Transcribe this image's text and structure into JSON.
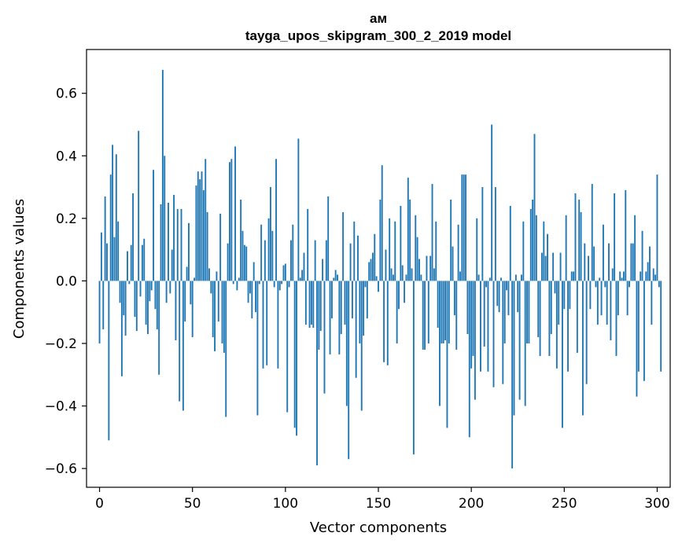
{
  "chart_data": {
    "type": "bar",
    "title": "ам",
    "subtitle": "tayga_upos_skipgram_300_2_2019 model",
    "xlabel": "Vector components",
    "ylabel": "Components values",
    "xlim": [
      -7,
      307
    ],
    "ylim": [
      -0.66,
      0.74
    ],
    "xticks": [
      0,
      50,
      100,
      150,
      200,
      250,
      300
    ],
    "yticks": [
      -0.6,
      -0.4,
      -0.2,
      0.0,
      0.2,
      0.4,
      0.6
    ],
    "xtick_labels": [
      "0",
      "50",
      "100",
      "150",
      "200",
      "250",
      "300"
    ],
    "ytick_labels": [
      "−0.6",
      "−0.4",
      "−0.2",
      "0.0",
      "0.2",
      "0.4",
      "0.6"
    ],
    "grid": false,
    "bar_color": "#1f77b4",
    "values": [
      -0.2,
      0.155,
      -0.155,
      0.27,
      0.12,
      -0.51,
      0.34,
      0.435,
      0.14,
      0.405,
      0.19,
      -0.07,
      -0.305,
      -0.11,
      -0.175,
      0.095,
      -0.01,
      0.115,
      0.28,
      -0.115,
      -0.16,
      0.48,
      -0.05,
      0.115,
      0.135,
      -0.14,
      -0.17,
      -0.065,
      -0.03,
      0.355,
      -0.09,
      -0.155,
      -0.3,
      0.245,
      0.675,
      0.4,
      -0.07,
      0.25,
      -0.04,
      0.1,
      0.275,
      -0.19,
      0.23,
      -0.385,
      0.23,
      -0.415,
      -0.13,
      0.045,
      0.185,
      -0.075,
      -0.18,
      0.01,
      0.305,
      0.35,
      0.325,
      0.35,
      0.29,
      0.39,
      0.22,
      0.04,
      -0.04,
      -0.18,
      -0.225,
      0.03,
      -0.13,
      0.215,
      -0.2,
      -0.23,
      -0.435,
      0.12,
      0.38,
      0.39,
      -0.01,
      0.43,
      -0.03,
      0.01,
      0.26,
      0.16,
      0.115,
      0.11,
      -0.07,
      -0.04,
      -0.12,
      0.06,
      -0.1,
      -0.43,
      -0.01,
      0.18,
      -0.28,
      0.13,
      -0.27,
      0.2,
      0.3,
      0.16,
      -0.02,
      0.39,
      -0.28,
      -0.03,
      -0.01,
      0.05,
      0.055,
      -0.42,
      -0.02,
      0.13,
      0.18,
      -0.47,
      -0.495,
      0.455,
      0.01,
      0.035,
      0.09,
      -0.14,
      0.23,
      -0.15,
      -0.14,
      -0.15,
      0.13,
      -0.59,
      -0.22,
      -0.16,
      0.07,
      -0.36,
      0.13,
      0.27,
      -0.235,
      -0.12,
      0.01,
      0.035,
      0.02,
      -0.235,
      -0.17,
      0.22,
      -0.14,
      -0.4,
      -0.57,
      0.12,
      -0.12,
      0.19,
      -0.31,
      0.145,
      -0.2,
      -0.415,
      -0.175,
      -0.02,
      -0.12,
      0.06,
      0.07,
      0.09,
      0.15,
      0.015,
      -0.035,
      0.26,
      0.37,
      -0.26,
      0.1,
      -0.27,
      0.2,
      0.04,
      0.02,
      0.19,
      -0.2,
      -0.09,
      0.24,
      0.05,
      -0.07,
      0.02,
      0.33,
      0.26,
      0.04,
      -0.555,
      0.21,
      0.14,
      0.07,
      0.02,
      -0.22,
      -0.22,
      0.08,
      -0.2,
      0.08,
      0.31,
      0.04,
      0.19,
      -0.15,
      -0.4,
      -0.2,
      -0.2,
      -0.19,
      -0.47,
      -0.2,
      0.26,
      0.11,
      -0.11,
      -0.22,
      0.18,
      0.03,
      0.34,
      0.34,
      0.34,
      -0.17,
      -0.5,
      -0.28,
      -0.24,
      -0.38,
      0.2,
      0.02,
      -0.29,
      0.3,
      -0.21,
      -0.02,
      -0.29,
      0.01,
      0.5,
      -0.34,
      0.3,
      -0.08,
      -0.1,
      0.01,
      -0.33,
      -0.2,
      -0.03,
      -0.11,
      0.24,
      -0.6,
      -0.43,
      0.02,
      -0.1,
      -0.38,
      0.02,
      0.19,
      -0.4,
      -0.2,
      -0.2,
      0.23,
      0.26,
      0.47,
      0.21,
      -0.18,
      -0.24,
      0.09,
      0.19,
      0.08,
      0.15,
      -0.24,
      -0.17,
      0.09,
      -0.04,
      -0.28,
      -0.14,
      0.09,
      -0.47,
      -0.09,
      0.21,
      -0.29,
      -0.09,
      0.03,
      0.03,
      0.28,
      -0.23,
      0.26,
      0.22,
      -0.43,
      0.12,
      -0.33,
      0.08,
      -0.09,
      0.31,
      0.11,
      -0.02,
      -0.14,
      0.01,
      -0.11,
      0.18,
      -0.02,
      -0.14,
      0.12,
      -0.19,
      0.04,
      0.28,
      -0.24,
      -0.11,
      0.03,
      0.01,
      0.03,
      0.29,
      -0.11,
      -0.02,
      0.12,
      0.12,
      0.21,
      -0.37,
      -0.29,
      0.03,
      0.16,
      -0.32,
      0.03,
      0.06,
      0.11,
      -0.14,
      0.04,
      0.02,
      0.34,
      -0.02,
      -0.29
    ]
  }
}
